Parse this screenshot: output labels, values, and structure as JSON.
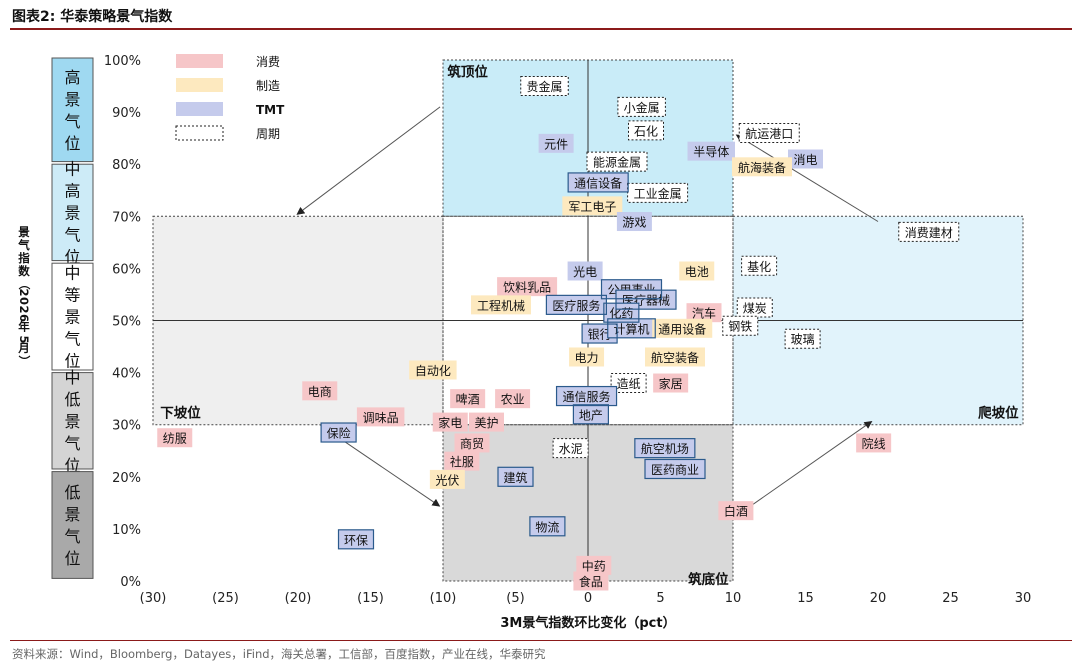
{
  "header": {
    "title": "图表2:   华泰策略景气指数"
  },
  "footer": {
    "source": "资料来源：Wind，Bloomberg，Datayes，iFind，海关总署，工信部，百度指数，产业在线，华泰研究"
  },
  "colors": {
    "consumer": "#f6c6c8",
    "manufacturing": "#fde9bf",
    "tmt": "#c5cbec",
    "cycle_border": "#333333",
    "top_zone": "#c9ecf8",
    "right_zone": "#e1f3fb",
    "left_zone": "#efefef",
    "bottom_zone": "#d9d9d9",
    "box_fill": "#b8e4f8",
    "box_border": "#2b5a8c"
  },
  "chart_data": {
    "type": "scatter",
    "title": "华泰策略景气指数",
    "xlabel": "3M景气指数环比变化（pct）",
    "ylabel": "景气指数（2026年5月）",
    "xlim": [
      -30,
      30
    ],
    "ylim": [
      0,
      100
    ],
    "x_ticks": [
      "(30)",
      "(25)",
      "(20)",
      "(15)",
      "(10)",
      "(5)",
      "0",
      "5",
      "10",
      "15",
      "20",
      "25",
      "30"
    ],
    "y_ticks": [
      "0%",
      "10%",
      "20%",
      "30%",
      "40%",
      "50%",
      "60%",
      "70%",
      "80%",
      "90%",
      "100%"
    ],
    "legend": {
      "position": "top-left",
      "items": [
        {
          "label": "消费",
          "category": "consumer"
        },
        {
          "label": "制造",
          "category": "manufacturing"
        },
        {
          "label": "TMT",
          "category": "tmt"
        },
        {
          "label": "周期",
          "category": "cycle"
        }
      ]
    },
    "levels": [
      {
        "label": "高景气位",
        "fill": "#9fd9f1"
      },
      {
        "label": "中高景气位",
        "fill": "#cdebf7"
      },
      {
        "label": "中等景气位",
        "fill": "#ffffff"
      },
      {
        "label": "中低景气位",
        "fill": "#d4d4d4"
      },
      {
        "label": "低景气位",
        "fill": "#a9a9a9"
      }
    ],
    "zone_labels": [
      {
        "text": "筑顶位",
        "x": -9.7,
        "y": 98,
        "anchor": "start"
      },
      {
        "text": "下坡位",
        "x": -29.5,
        "y": 32.5,
        "anchor": "start"
      },
      {
        "text": "爬坡位",
        "x": 29.7,
        "y": 32.5,
        "anchor": "end"
      },
      {
        "text": "筑底位",
        "x": 9.7,
        "y": 0.6,
        "anchor": "end"
      }
    ],
    "points": [
      {
        "label": "贵金属",
        "x": -3,
        "y": 95,
        "category": "cycle"
      },
      {
        "label": "小金属",
        "x": 3.7,
        "y": 91,
        "category": "cycle"
      },
      {
        "label": "石化",
        "x": 4,
        "y": 86.5,
        "category": "cycle"
      },
      {
        "label": "元件",
        "x": -2.2,
        "y": 84,
        "category": "tmt"
      },
      {
        "label": "能源金属",
        "x": 2,
        "y": 80.5,
        "category": "cycle"
      },
      {
        "label": "半导体",
        "x": 8.5,
        "y": 82.5,
        "category": "tmt"
      },
      {
        "label": "航运港口",
        "x": 12.5,
        "y": 86,
        "category": "cycle"
      },
      {
        "label": "消电",
        "x": 15,
        "y": 81,
        "category": "tmt"
      },
      {
        "label": "航海装备",
        "x": 12,
        "y": 79.5,
        "category": "manufacturing"
      },
      {
        "label": "通信设备",
        "x": 0.7,
        "y": 76.5,
        "category": "tmt"
      },
      {
        "label": "工业金属",
        "x": 4.8,
        "y": 74.5,
        "category": "cycle"
      },
      {
        "label": "军工电子",
        "x": 0.3,
        "y": 72,
        "category": "manufacturing"
      },
      {
        "label": "游戏",
        "x": 3.2,
        "y": 69,
        "category": "tmt"
      },
      {
        "label": "消费建材",
        "x": 23.5,
        "y": 67,
        "category": "cycle"
      },
      {
        "label": "光电",
        "x": -0.2,
        "y": 59.5,
        "category": "tmt"
      },
      {
        "label": "电池",
        "x": 7.5,
        "y": 59.5,
        "category": "manufacturing"
      },
      {
        "label": "基化",
        "x": 11.8,
        "y": 60.5,
        "category": "cycle"
      },
      {
        "label": "饮料乳品",
        "x": -4.2,
        "y": 56.5,
        "category": "consumer"
      },
      {
        "label": "公用事业",
        "x": 3,
        "y": 56,
        "category": "tmt"
      },
      {
        "label": "医疗器械",
        "x": 4,
        "y": 54,
        "category": "tmt"
      },
      {
        "label": "工程机械",
        "x": -6,
        "y": 53,
        "category": "manufacturing"
      },
      {
        "label": "医疗服务",
        "x": -0.8,
        "y": 53,
        "category": "tmt"
      },
      {
        "label": "化药",
        "x": 2.3,
        "y": 51.5,
        "category": "tmt"
      },
      {
        "label": "煤炭",
        "x": 11.5,
        "y": 52.5,
        "category": "cycle"
      },
      {
        "label": "汽车",
        "x": 8,
        "y": 51.5,
        "category": "consumer"
      },
      {
        "label": "钢铁",
        "x": 10.5,
        "y": 49,
        "category": "cycle"
      },
      {
        "label": "银行",
        "x": 0.8,
        "y": 47.5,
        "category": "tmt"
      },
      {
        "label": "计算机",
        "x": 3,
        "y": 48.5,
        "category": "tmt"
      },
      {
        "label": "通用设备",
        "x": 6.5,
        "y": 48.5,
        "category": "manufacturing"
      },
      {
        "label": "玻璃",
        "x": 14.8,
        "y": 46.5,
        "category": "cycle"
      },
      {
        "label": "电力",
        "x": -0.1,
        "y": 43,
        "category": "manufacturing"
      },
      {
        "label": "航空装备",
        "x": 6,
        "y": 43,
        "category": "manufacturing"
      },
      {
        "label": "自动化",
        "x": -10.7,
        "y": 40.5,
        "category": "manufacturing"
      },
      {
        "label": "家居",
        "x": 5.7,
        "y": 38,
        "category": "consumer"
      },
      {
        "label": "造纸",
        "x": 2.8,
        "y": 38,
        "category": "cycle"
      },
      {
        "label": "电商",
        "x": -18.5,
        "y": 36.5,
        "category": "consumer"
      },
      {
        "label": "啤酒",
        "x": -8.3,
        "y": 35,
        "category": "consumer"
      },
      {
        "label": "农业",
        "x": -5.2,
        "y": 35,
        "category": "consumer"
      },
      {
        "label": "通信服务",
        "x": -0.1,
        "y": 35.5,
        "category": "tmt"
      },
      {
        "label": "调味品",
        "x": -14.3,
        "y": 31.5,
        "category": "consumer"
      },
      {
        "label": "地产",
        "x": 0.2,
        "y": 32,
        "category": "tmt"
      },
      {
        "label": "家电",
        "x": -9.5,
        "y": 30.5,
        "category": "consumer"
      },
      {
        "label": "美护",
        "x": -7,
        "y": 30.5,
        "category": "consumer"
      },
      {
        "label": "纺服",
        "x": -28.5,
        "y": 27.5,
        "category": "consumer"
      },
      {
        "label": "保险",
        "x": -17.2,
        "y": 28.5,
        "category": "tmt"
      },
      {
        "label": "商贸",
        "x": -8,
        "y": 26.5,
        "category": "consumer"
      },
      {
        "label": "水泥",
        "x": -1.2,
        "y": 25.5,
        "category": "cycle"
      },
      {
        "label": "航空机场",
        "x": 5.3,
        "y": 25.5,
        "category": "tmt"
      },
      {
        "label": "社服",
        "x": -8.7,
        "y": 23,
        "category": "consumer"
      },
      {
        "label": "医药商业",
        "x": 6,
        "y": 21.5,
        "category": "tmt"
      },
      {
        "label": "院线",
        "x": 19.7,
        "y": 26.5,
        "category": "consumer"
      },
      {
        "label": "光伏",
        "x": -9.7,
        "y": 19.5,
        "category": "manufacturing"
      },
      {
        "label": "建筑",
        "x": -5,
        "y": 20,
        "category": "tmt"
      },
      {
        "label": "白酒",
        "x": 10.2,
        "y": 13.5,
        "category": "consumer"
      },
      {
        "label": "物流",
        "x": -2.8,
        "y": 10.5,
        "category": "tmt"
      },
      {
        "label": "环保",
        "x": -16,
        "y": 8,
        "category": "tmt"
      },
      {
        "label": "中药",
        "x": 0.4,
        "y": 3,
        "category": "consumer"
      },
      {
        "label": "食品",
        "x": 0.2,
        "y": 0,
        "category": "consumer"
      }
    ]
  }
}
